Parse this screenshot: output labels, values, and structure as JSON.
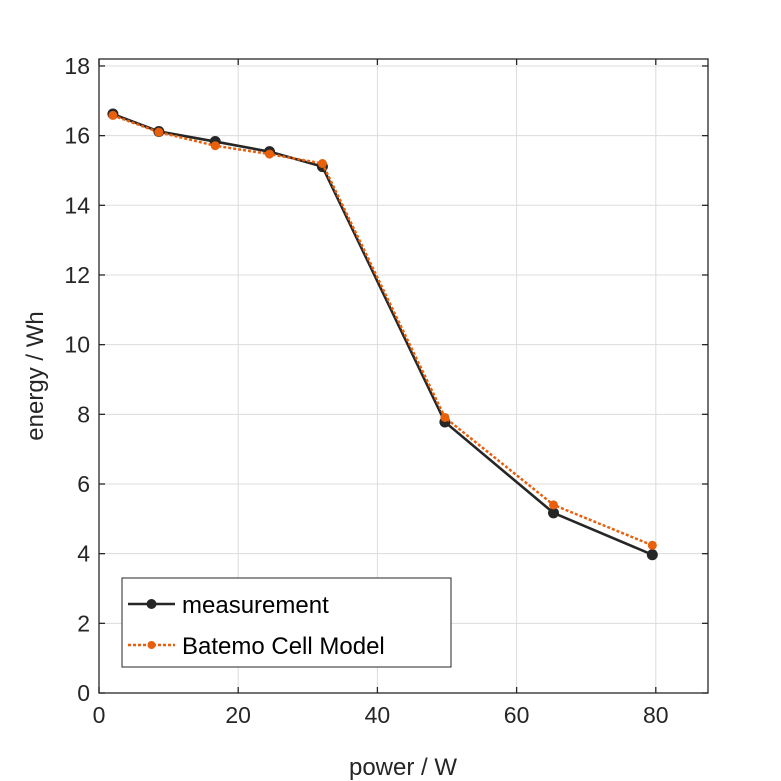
{
  "chart_data": {
    "type": "line",
    "title": "",
    "xlabel": "power / W",
    "ylabel": "energy / Wh",
    "xlim": [
      0,
      87.5
    ],
    "ylim": [
      0,
      18.2
    ],
    "xticks": [
      0,
      20,
      40,
      60,
      80
    ],
    "yticks": [
      0,
      2,
      4,
      6,
      8,
      10,
      12,
      14,
      16,
      18
    ],
    "grid": true,
    "legend_placement": "bottom-left",
    "series": [
      {
        "name": "measurement",
        "color": "#262626",
        "style": "solid",
        "marker": "circle",
        "x": [
          2.0,
          8.6,
          16.7,
          24.5,
          32.1,
          49.7,
          65.3,
          79.5
        ],
        "y": [
          16.62,
          16.12,
          15.83,
          15.54,
          15.11,
          7.78,
          5.17,
          3.97
        ]
      },
      {
        "name": "Batemo Cell Model",
        "color": "#e8600c",
        "style": "dotted",
        "marker": "circle",
        "x": [
          2.0,
          8.6,
          16.7,
          24.5,
          32.1,
          49.7,
          65.3,
          79.5
        ],
        "y": [
          16.58,
          16.1,
          15.71,
          15.47,
          15.2,
          7.91,
          5.4,
          4.24
        ]
      }
    ]
  }
}
